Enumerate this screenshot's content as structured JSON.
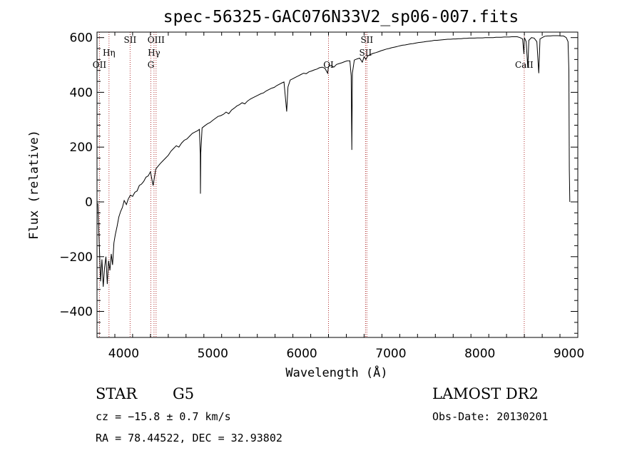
{
  "chart_data": {
    "type": "line",
    "title": "spec-56325-GAC076N33V2_sp06-007.fits",
    "xlabel": "Wavelength (Å)",
    "ylabel": "Flux (relative)",
    "xlim": [
      3700,
      9100
    ],
    "ylim": [
      -495,
      620
    ],
    "x_ticks": [
      4000,
      5000,
      6000,
      7000,
      8000,
      9000
    ],
    "y_ticks": [
      -400,
      -200,
      0,
      200,
      400,
      600
    ],
    "grid": false,
    "series": [
      {
        "color": "#000000",
        "points": [
          [
            3710,
            -5
          ],
          [
            3725,
            -150
          ],
          [
            3740,
            -290
          ],
          [
            3755,
            -210
          ],
          [
            3770,
            -310
          ],
          [
            3785,
            -240
          ],
          [
            3800,
            -200
          ],
          [
            3815,
            -300
          ],
          [
            3830,
            -215
          ],
          [
            3845,
            -250
          ],
          [
            3860,
            -190
          ],
          [
            3875,
            -230
          ],
          [
            3890,
            -150
          ],
          [
            3905,
            -120
          ],
          [
            3925,
            -90
          ],
          [
            3945,
            -55
          ],
          [
            3965,
            -35
          ],
          [
            3985,
            -20
          ],
          [
            4005,
            5
          ],
          [
            4030,
            -10
          ],
          [
            4050,
            10
          ],
          [
            4075,
            25
          ],
          [
            4100,
            20
          ],
          [
            4125,
            35
          ],
          [
            4150,
            40
          ],
          [
            4175,
            60
          ],
          [
            4200,
            65
          ],
          [
            4225,
            75
          ],
          [
            4250,
            90
          ],
          [
            4275,
            95
          ],
          [
            4300,
            110
          ],
          [
            4330,
            60
          ],
          [
            4340,
            80
          ],
          [
            4360,
            120
          ],
          [
            4385,
            130
          ],
          [
            4410,
            140
          ],
          [
            4440,
            150
          ],
          [
            4470,
            160
          ],
          [
            4500,
            170
          ],
          [
            4530,
            185
          ],
          [
            4560,
            195
          ],
          [
            4590,
            205
          ],
          [
            4620,
            200
          ],
          [
            4650,
            215
          ],
          [
            4680,
            225
          ],
          [
            4710,
            230
          ],
          [
            4740,
            240
          ],
          [
            4770,
            250
          ],
          [
            4800,
            255
          ],
          [
            4830,
            260
          ],
          [
            4850,
            265
          ],
          [
            4860,
            175
          ],
          [
            4862,
            30
          ],
          [
            4866,
            180
          ],
          [
            4880,
            270
          ],
          [
            4910,
            278
          ],
          [
            4940,
            285
          ],
          [
            4970,
            290
          ],
          [
            5000,
            298
          ],
          [
            5030,
            305
          ],
          [
            5060,
            312
          ],
          [
            5090,
            315
          ],
          [
            5120,
            320
          ],
          [
            5150,
            328
          ],
          [
            5180,
            322
          ],
          [
            5210,
            335
          ],
          [
            5240,
            342
          ],
          [
            5270,
            350
          ],
          [
            5300,
            355
          ],
          [
            5330,
            362
          ],
          [
            5360,
            358
          ],
          [
            5390,
            368
          ],
          [
            5420,
            375
          ],
          [
            5450,
            380
          ],
          [
            5480,
            385
          ],
          [
            5510,
            390
          ],
          [
            5540,
            395
          ],
          [
            5570,
            398
          ],
          [
            5600,
            405
          ],
          [
            5630,
            410
          ],
          [
            5660,
            415
          ],
          [
            5690,
            418
          ],
          [
            5720,
            425
          ],
          [
            5750,
            430
          ],
          [
            5780,
            435
          ],
          [
            5800,
            438
          ],
          [
            5830,
            330
          ],
          [
            5845,
            420
          ],
          [
            5870,
            445
          ],
          [
            5900,
            450
          ],
          [
            5930,
            455
          ],
          [
            5960,
            460
          ],
          [
            5990,
            465
          ],
          [
            6020,
            470
          ],
          [
            6050,
            468
          ],
          [
            6080,
            475
          ],
          [
            6110,
            478
          ],
          [
            6140,
            482
          ],
          [
            6170,
            485
          ],
          [
            6200,
            490
          ],
          [
            6230,
            492
          ],
          [
            6260,
            488
          ],
          [
            6290,
            470
          ],
          [
            6300,
            495
          ],
          [
            6330,
            498
          ],
          [
            6360,
            492
          ],
          [
            6390,
            502
          ],
          [
            6420,
            505
          ],
          [
            6450,
            508
          ],
          [
            6480,
            512
          ],
          [
            6510,
            515
          ],
          [
            6540,
            515
          ],
          [
            6555,
            460
          ],
          [
            6562,
            190
          ],
          [
            6568,
            470
          ],
          [
            6590,
            518
          ],
          [
            6620,
            522
          ],
          [
            6650,
            525
          ],
          [
            6680,
            510
          ],
          [
            6700,
            530
          ],
          [
            6720,
            520
          ],
          [
            6740,
            533
          ],
          [
            6770,
            538
          ],
          [
            6800,
            542
          ],
          [
            6830,
            545
          ],
          [
            6860,
            548
          ],
          [
            6890,
            552
          ],
          [
            6920,
            555
          ],
          [
            6950,
            558
          ],
          [
            6980,
            560
          ],
          [
            7010,
            563
          ],
          [
            7040,
            565
          ],
          [
            7070,
            567
          ],
          [
            7100,
            570
          ],
          [
            7130,
            572
          ],
          [
            7160,
            573
          ],
          [
            7190,
            575
          ],
          [
            7220,
            577
          ],
          [
            7250,
            578
          ],
          [
            7280,
            580
          ],
          [
            7310,
            582
          ],
          [
            7340,
            583
          ],
          [
            7370,
            584
          ],
          [
            7400,
            586
          ],
          [
            7430,
            587
          ],
          [
            7460,
            588
          ],
          [
            7490,
            590
          ],
          [
            7520,
            590
          ],
          [
            7550,
            591
          ],
          [
            7580,
            592
          ],
          [
            7610,
            593
          ],
          [
            7640,
            594
          ],
          [
            7670,
            594
          ],
          [
            7700,
            595
          ],
          [
            7730,
            595
          ],
          [
            7760,
            596
          ],
          [
            7790,
            596
          ],
          [
            7820,
            597
          ],
          [
            7850,
            597
          ],
          [
            7880,
            598
          ],
          [
            7910,
            598
          ],
          [
            7940,
            598
          ],
          [
            7970,
            599
          ],
          [
            8000,
            599
          ],
          [
            8030,
            599
          ],
          [
            8060,
            600
          ],
          [
            8090,
            600
          ],
          [
            8120,
            600
          ],
          [
            8150,
            600
          ],
          [
            8180,
            601
          ],
          [
            8210,
            601
          ],
          [
            8240,
            601
          ],
          [
            8270,
            602
          ],
          [
            8300,
            602
          ],
          [
            8330,
            602
          ],
          [
            8360,
            603
          ],
          [
            8390,
            603
          ],
          [
            8420,
            603
          ],
          [
            8450,
            600
          ],
          [
            8480,
            595
          ],
          [
            8495,
            540
          ],
          [
            8500,
            600
          ],
          [
            8520,
            585
          ],
          [
            8538,
            490
          ],
          [
            8550,
            590
          ],
          [
            8580,
            600
          ],
          [
            8610,
            598
          ],
          [
            8640,
            585
          ],
          [
            8662,
            470
          ],
          [
            8675,
            595
          ],
          [
            8700,
            600
          ],
          [
            8730,
            605
          ],
          [
            8760,
            606
          ],
          [
            8790,
            606
          ],
          [
            8820,
            607
          ],
          [
            8850,
            607
          ],
          [
            8880,
            607
          ],
          [
            8910,
            606
          ],
          [
            8940,
            606
          ],
          [
            8970,
            600
          ],
          [
            8990,
            585
          ],
          [
            9000,
            480
          ],
          [
            9005,
            120
          ],
          [
            9010,
            0
          ]
        ]
      }
    ],
    "lines": [
      {
        "label": "OII",
        "x": 3727,
        "ypx": 95
      },
      {
        "label": "Hη",
        "x": 3835,
        "ypx": 78
      },
      {
        "label": "SII",
        "x": 4072,
        "ypx": 60
      },
      {
        "label": "G",
        "x": 4305,
        "ypx": 95
      },
      {
        "label": "Hγ",
        "x": 4340,
        "ypx": 78
      },
      {
        "label": "OIII",
        "x": 4363,
        "ypx": 60
      },
      {
        "label": "OI",
        "x": 6300,
        "ypx": 95
      },
      {
        "label": "SII",
        "x": 6716,
        "ypx": 78
      },
      {
        "label": "SII",
        "x": 6731,
        "ypx": 60
      },
      {
        "label": "CaII",
        "x": 8498,
        "ypx": 95
      }
    ]
  },
  "info": {
    "class": "STAR",
    "subclass": "G5",
    "survey": "LAMOST DR2",
    "cz": "cz = −15.8 ± 0.7 km/s",
    "obs_date": "Obs-Date: 20130201",
    "radec": "RA =  78.44522, DEC =  32.93802"
  }
}
